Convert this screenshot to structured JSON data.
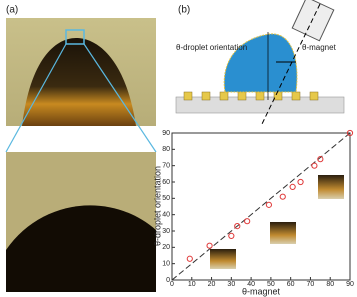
{
  "labels": {
    "panel_a": "(a)",
    "panel_b": "(b)",
    "droplet_angle": "θ-droplet orientation",
    "magnet_angle": "θ-magnet"
  },
  "chart_data": {
    "type": "scatter",
    "x": [
      9,
      19,
      30,
      33,
      38,
      49,
      56,
      61,
      65,
      72,
      75,
      90
    ],
    "values": [
      13,
      21,
      27,
      33,
      36,
      46,
      51,
      57,
      60,
      70,
      74,
      90
    ],
    "color": "#e03a3a",
    "x_label": "θ-magnet",
    "y_label": "θ-droplet orientation",
    "xlim": [
      0,
      90
    ],
    "ylim": [
      0,
      90
    ],
    "xticks": [
      0,
      10,
      20,
      30,
      40,
      50,
      60,
      70,
      80,
      90
    ],
    "yticks": [
      0,
      10,
      20,
      30,
      40,
      50,
      60,
      70,
      80,
      90
    ],
    "diagonal": true
  }
}
